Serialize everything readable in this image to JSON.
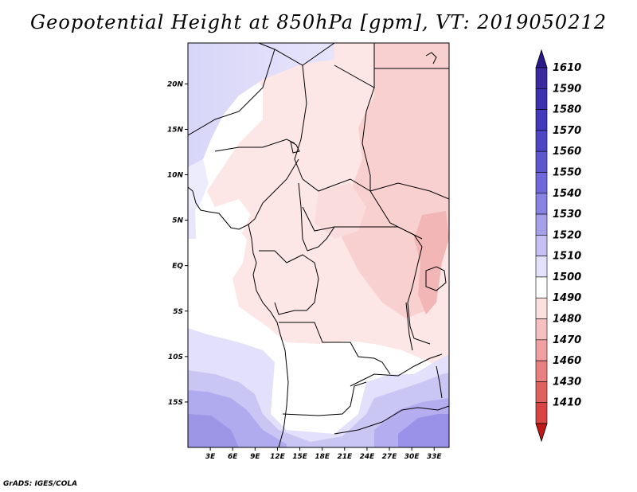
{
  "title": "Geopotential Height at 850hPa [gpm], VT: 2019050212",
  "credit": "GrADS: IGES/COLA",
  "map": {
    "projection": "lat-lon",
    "lon_range": [
      0,
      35
    ],
    "lat_range": [
      -20,
      24.5
    ],
    "lat_ticks": [
      {
        "value": 20,
        "label": "20N"
      },
      {
        "value": 15,
        "label": "15N"
      },
      {
        "value": 10,
        "label": "10N"
      },
      {
        "value": 5,
        "label": "5N"
      },
      {
        "value": 0,
        "label": "EQ"
      },
      {
        "value": -5,
        "label": "5S"
      },
      {
        "value": -10,
        "label": "10S"
      },
      {
        "value": -15,
        "label": "15S"
      }
    ],
    "lon_ticks": [
      {
        "value": 3,
        "label": "3E"
      },
      {
        "value": 6,
        "label": "6E"
      },
      {
        "value": 9,
        "label": "9E"
      },
      {
        "value": 12,
        "label": "12E"
      },
      {
        "value": 15,
        "label": "15E"
      },
      {
        "value": 18,
        "label": "18E"
      },
      {
        "value": 21,
        "label": "21E"
      },
      {
        "value": 24,
        "label": "24E"
      },
      {
        "value": 27,
        "label": "27E"
      },
      {
        "value": 30,
        "label": "30E"
      },
      {
        "value": 33,
        "label": "33E"
      }
    ]
  },
  "colorbar": {
    "levels": [
      {
        "label": "1610",
        "color": "#3a2aa0"
      },
      {
        "label": "1590",
        "color": "#3c30b0"
      },
      {
        "label": "1580",
        "color": "#4438bc"
      },
      {
        "label": "1570",
        "color": "#4f46c6"
      },
      {
        "label": "1560",
        "color": "#5e58d0"
      },
      {
        "label": "1550",
        "color": "#7068da"
      },
      {
        "label": "1540",
        "color": "#8a82e2"
      },
      {
        "label": "1530",
        "color": "#a6a0ea"
      },
      {
        "label": "1520",
        "color": "#c4c0f2"
      },
      {
        "label": "1510",
        "color": "#e2e0fa"
      },
      {
        "label": "1500",
        "color": "#ffffff"
      },
      {
        "label": "1490",
        "color": "#fbe0e0"
      },
      {
        "label": "1480",
        "color": "#f6c0c0"
      },
      {
        "label": "1470",
        "color": "#f0a0a0"
      },
      {
        "label": "1460",
        "color": "#e88080"
      },
      {
        "label": "1430",
        "color": "#e06060"
      },
      {
        "label": "1410",
        "color": "#d84444"
      }
    ],
    "top_cap_color": "#2b1a8c",
    "bottom_cap_color": "#c01818"
  }
}
